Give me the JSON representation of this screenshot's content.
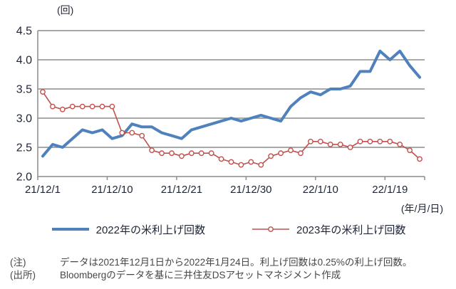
{
  "chart": {
    "y_unit": "(回)",
    "x_unit": "(年/月/日)"
  },
  "chart_data": {
    "type": "line",
    "title": "",
    "xlabel": "(年/月/日)",
    "ylabel": "(回)",
    "ylim": [
      2.0,
      4.5
    ],
    "yticks": [
      2.0,
      2.5,
      3.0,
      3.5,
      4.0,
      4.5
    ],
    "grid": true,
    "legend_position": "bottom",
    "x": [
      "21/12/1",
      "21/12/2",
      "21/12/3",
      "21/12/6",
      "21/12/7",
      "21/12/8",
      "21/12/9",
      "21/12/10",
      "21/12/13",
      "21/12/14",
      "21/12/15",
      "21/12/16",
      "21/12/17",
      "21/12/20",
      "21/12/21",
      "21/12/22",
      "21/12/23",
      "21/12/24",
      "21/12/27",
      "21/12/28",
      "21/12/29",
      "21/12/30",
      "21/12/31",
      "22/1/3",
      "22/1/4",
      "22/1/5",
      "22/1/6",
      "22/1/7",
      "22/1/10",
      "22/1/11",
      "22/1/12",
      "22/1/13",
      "22/1/14",
      "22/1/17",
      "22/1/18",
      "22/1/19",
      "22/1/20",
      "22/1/21",
      "22/1/24"
    ],
    "x_tick_indices": [
      0,
      7,
      14,
      21,
      28,
      35
    ],
    "x_tick_labels": [
      "21/12/1",
      "21/12/10",
      "21/12/21",
      "21/12/30",
      "22/1/10",
      "22/1/19"
    ],
    "series": [
      {
        "name": "2022年の米利上げ回数",
        "color": "#4F81BD",
        "line_width": 4,
        "marker": "none",
        "values": [
          2.35,
          2.55,
          2.5,
          2.65,
          2.8,
          2.75,
          2.8,
          2.65,
          2.7,
          2.9,
          2.85,
          2.85,
          2.75,
          2.7,
          2.65,
          2.8,
          2.85,
          2.9,
          2.95,
          3.0,
          2.95,
          3.0,
          3.05,
          3.0,
          2.95,
          3.2,
          3.35,
          3.45,
          3.4,
          3.5,
          3.5,
          3.55,
          3.8,
          3.8,
          4.15,
          4.0,
          4.15,
          3.9,
          3.7
        ]
      },
      {
        "name": "2023年の米利上げ回数",
        "color": "#C0504D",
        "line_width": 1.6,
        "marker": "circle-open",
        "values": [
          3.45,
          3.2,
          3.15,
          3.2,
          3.2,
          3.2,
          3.2,
          3.2,
          2.75,
          2.75,
          2.7,
          2.45,
          2.4,
          2.4,
          2.35,
          2.4,
          2.4,
          2.4,
          2.3,
          2.25,
          2.2,
          2.25,
          2.2,
          2.35,
          2.4,
          2.45,
          2.4,
          2.6,
          2.6,
          2.55,
          2.55,
          2.5,
          2.6,
          2.6,
          2.6,
          2.6,
          2.55,
          2.45,
          2.3
        ]
      }
    ],
    "colors": {
      "grid": "#8c8c8c",
      "axis": "#8c8c8c",
      "tick_text": "#1f2535",
      "note_text": "#474747",
      "background": "#ffffff"
    }
  },
  "notes": {
    "note_label": "(注)",
    "note_text": "データは2021年12月1日から2022年1月24日。利上げ回数は0.25%の利上げ回数。",
    "source_label": "(出所)",
    "source_text": "Bloombergのデータを基に三井住友DSアセットマネジメント作成"
  }
}
